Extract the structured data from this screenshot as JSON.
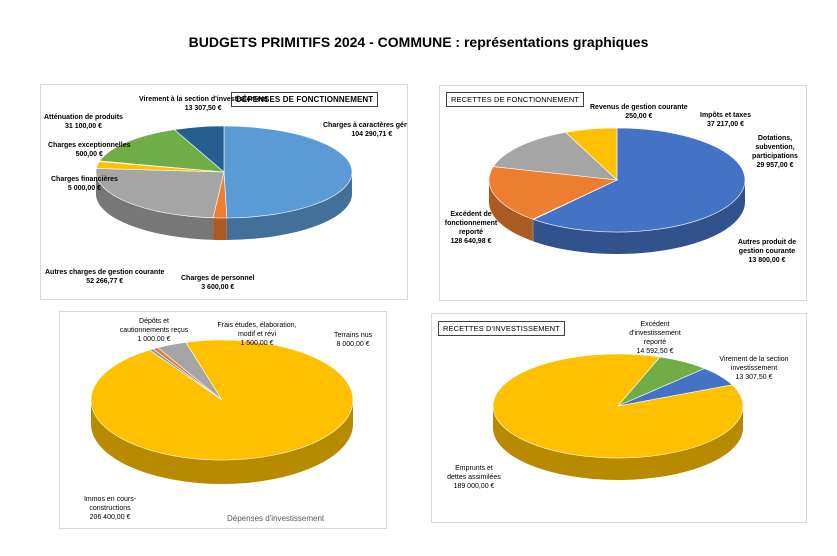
{
  "page_title": "BUDGETS PRIMITIFS 2024 - COMMUNE : représentations graphiques",
  "chart_data": [
    {
      "type": "pie",
      "title": "DÉPENSES DE FONCTIONNEMENT",
      "categories": [
        "Charges à caractères général",
        "Charges de personnel",
        "Autres charges de gestion courante",
        "Charges financières",
        "Charges exceptionnelles",
        "Atténuation de produits",
        "Virement à la section d'investissement"
      ],
      "values": [
        104290.71,
        3600.0,
        52266.77,
        5000.0,
        500.0,
        31100.0,
        13307.5
      ],
      "value_labels": [
        "104 290,71 €",
        "3 600,00 €",
        "52 266,77 €",
        "5 000,00 €",
        "500,00 €",
        "31 100,00 €",
        "13 307,50 €"
      ],
      "colors": [
        "#5B9BD5",
        "#ED7D31",
        "#A5A5A5",
        "#FFC000",
        "#4472C4",
        "#70AD47",
        "#255E91"
      ]
    },
    {
      "type": "pie",
      "title": "RECETTES DE FONCTIONNEMENT",
      "categories": [
        "Excédent de fonctionnement reporté",
        "Revenus de gestion courante",
        "Impôts et taxes",
        "Dotations, subvention, participations",
        "Autres produit de gestion courante"
      ],
      "values": [
        128640.98,
        250.0,
        37217.0,
        29957.0,
        13800.0
      ],
      "value_labels": [
        "128 640,98 €",
        "250,00 €",
        "37 217,00 €",
        "29 957,00 €",
        "13 800,00 €"
      ],
      "colors": [
        "#4472C4",
        "#A5A5A5",
        "#ED7D31",
        "#A5A5A5",
        "#FFC000"
      ]
    },
    {
      "type": "pie",
      "title": "Dépenses d'investissement",
      "categories": [
        "Immos en cours-constructions",
        "Dépôts et cautionnements reçus",
        "Frais études, élaboration, modif et révi",
        "Terrains nus"
      ],
      "values": [
        206400.0,
        1000.0,
        1500.0,
        8000.0
      ],
      "value_labels": [
        "206 400,00 €",
        "1 000,00 €",
        "1 500,00 €",
        "8 000,00 €"
      ],
      "colors": [
        "#FFC000",
        "#5B9BD5",
        "#ED7D31",
        "#A5A5A5"
      ]
    },
    {
      "type": "pie",
      "title": "RECETTES D'INVESTISSEMENT",
      "categories": [
        "Emprunts et dettes assimilées",
        "Excédent d'investissement reporté",
        "Virement de la section investissement"
      ],
      "values": [
        189000.0,
        14592.5,
        13307.5
      ],
      "value_labels": [
        "189 000,00 €",
        "14 592,50 €",
        "13 307,50 €"
      ],
      "colors": [
        "#FFC000",
        "#70AD47",
        "#4472C4"
      ]
    }
  ]
}
